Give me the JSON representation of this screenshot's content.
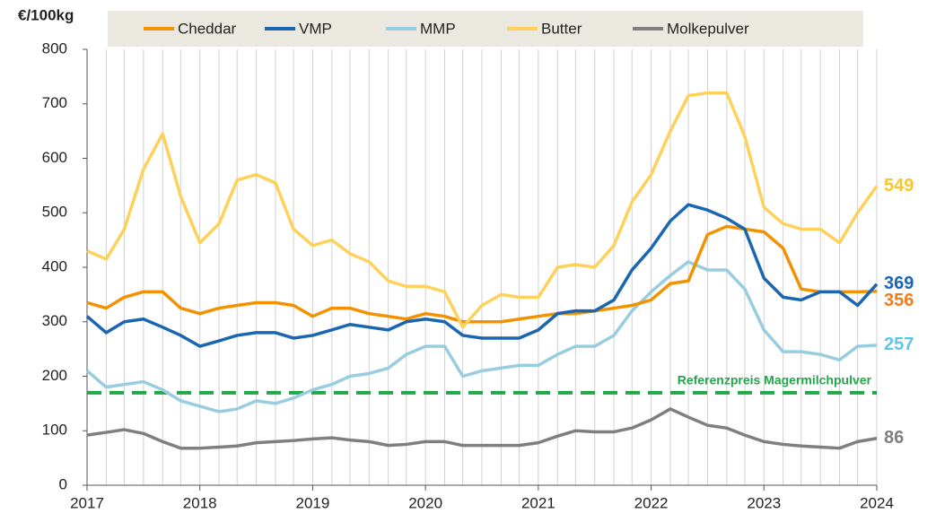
{
  "chart_data": {
    "type": "line",
    "y_label": "€/100kg",
    "x": [
      2017,
      2017.17,
      2017.33,
      2017.5,
      2017.67,
      2017.83,
      2018,
      2018.17,
      2018.33,
      2018.5,
      2018.67,
      2018.83,
      2019,
      2019.17,
      2019.33,
      2019.5,
      2019.67,
      2019.83,
      2020,
      2020.17,
      2020.33,
      2020.5,
      2020.67,
      2020.83,
      2021,
      2021.17,
      2021.33,
      2021.5,
      2021.67,
      2021.83,
      2022,
      2022.17,
      2022.33,
      2022.5,
      2022.67,
      2022.83,
      2023,
      2023.17,
      2023.33,
      2023.5,
      2023.67,
      2023.83,
      2024
    ],
    "xlim": [
      2017,
      2024
    ],
    "xticks": [
      2017,
      2018,
      2019,
      2020,
      2021,
      2022,
      2023,
      2024
    ],
    "ylim": [
      0,
      800
    ],
    "yticks": [
      0,
      100,
      200,
      300,
      400,
      500,
      600,
      700,
      800
    ],
    "grid": true,
    "legend": "top",
    "series": [
      {
        "name": "Cheddar",
        "color": "#f39200",
        "label_color": "#ee7d1d",
        "values": [
          335,
          325,
          345,
          355,
          355,
          325,
          315,
          325,
          330,
          335,
          335,
          330,
          310,
          325,
          325,
          315,
          310,
          305,
          315,
          310,
          300,
          300,
          300,
          305,
          310,
          315,
          315,
          320,
          325,
          330,
          340,
          370,
          375,
          460,
          475,
          470,
          465,
          435,
          360,
          355,
          355,
          355,
          356
        ]
      },
      {
        "name": "VMP",
        "color": "#1a66b0",
        "label_color": "#1a66b0",
        "values": [
          310,
          280,
          300,
          305,
          290,
          275,
          255,
          265,
          275,
          280,
          280,
          270,
          275,
          285,
          295,
          290,
          285,
          300,
          305,
          300,
          275,
          270,
          270,
          270,
          285,
          315,
          320,
          320,
          340,
          395,
          435,
          485,
          515,
          505,
          490,
          470,
          380,
          345,
          340,
          355,
          355,
          330,
          369
        ]
      },
      {
        "name": "MMP",
        "color": "#98cde0",
        "label_color": "#5bc6ea",
        "values": [
          210,
          180,
          185,
          190,
          175,
          155,
          145,
          135,
          140,
          155,
          150,
          160,
          175,
          185,
          200,
          205,
          215,
          240,
          255,
          255,
          200,
          210,
          215,
          220,
          220,
          240,
          255,
          255,
          275,
          320,
          355,
          385,
          410,
          395,
          395,
          360,
          285,
          245,
          245,
          240,
          230,
          255,
          257
        ]
      },
      {
        "name": "Butter",
        "color": "#fdd15a",
        "label_color": "#f9c531",
        "values": [
          430,
          415,
          470,
          580,
          645,
          530,
          445,
          480,
          560,
          570,
          555,
          470,
          440,
          450,
          425,
          410,
          375,
          365,
          365,
          355,
          290,
          330,
          350,
          345,
          345,
          400,
          405,
          400,
          440,
          520,
          570,
          650,
          715,
          720,
          720,
          640,
          510,
          480,
          470,
          470,
          445,
          500,
          549
        ]
      },
      {
        "name": "Molkepulver",
        "color": "#7f7f7f",
        "label_color": "#7f7f7f",
        "values": [
          92,
          97,
          102,
          95,
          80,
          68,
          68,
          70,
          72,
          78,
          80,
          82,
          85,
          87,
          83,
          80,
          73,
          75,
          80,
          80,
          73,
          73,
          73,
          73,
          78,
          90,
          100,
          98,
          98,
          105,
          120,
          140,
          125,
          110,
          105,
          92,
          80,
          75,
          72,
          70,
          68,
          80,
          86
        ]
      }
    ],
    "annotations": [
      {
        "text": "Referenzpreis Magermilchpulver",
        "value": 169.8,
        "color": "#22a64a"
      }
    ]
  }
}
